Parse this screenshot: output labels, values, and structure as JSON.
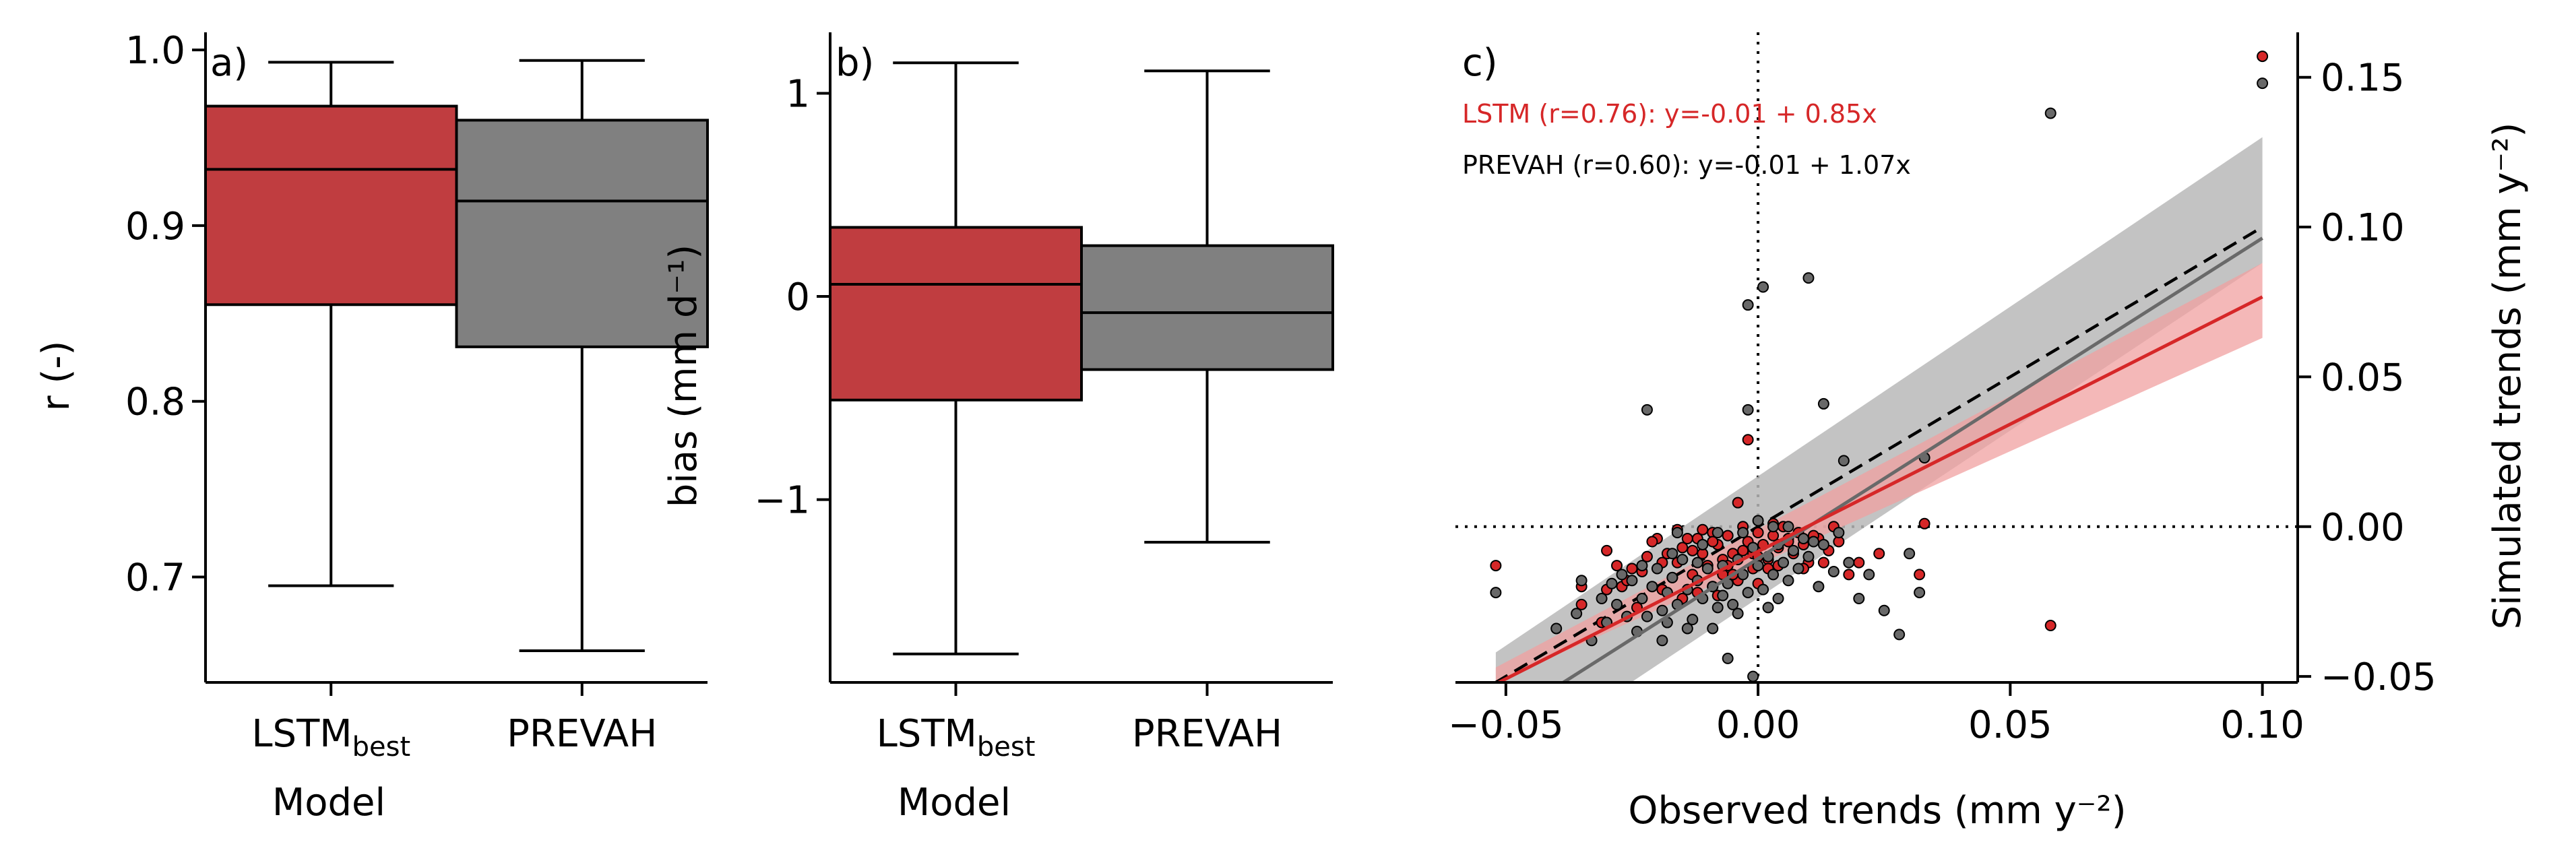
{
  "colors": {
    "lstm": "#C03D40",
    "prevah": "#808080",
    "lstm_line": "#D62728",
    "lstm_band": "#F0A0A0",
    "prevah_line": "#696969",
    "prevah_band": "#B8B8B8",
    "lstm_text": "#D62728",
    "prevah_text": "#000000"
  },
  "chart_data": [
    {
      "type": "box",
      "panel_label": "a)",
      "xlabel": "Model",
      "ylabel": "r (-)",
      "ylim": [
        0.64,
        1.01
      ],
      "yticks": [
        0.7,
        0.8,
        0.9,
        1.0
      ],
      "ytick_labels": [
        "0.7",
        "0.8",
        "0.9",
        "1.0"
      ],
      "categories": [
        {
          "main": "LSTM",
          "sub": "best"
        },
        {
          "main": "PREVAH",
          "sub": ""
        }
      ],
      "boxes": [
        {
          "whisker_low": 0.695,
          "q1": 0.855,
          "median": 0.932,
          "q3": 0.968,
          "whisker_high": 0.993
        },
        {
          "whisker_low": 0.658,
          "q1": 0.831,
          "median": 0.914,
          "q3": 0.96,
          "whisker_high": 0.994
        }
      ]
    },
    {
      "type": "box",
      "panel_label": "b)",
      "xlabel": "Model",
      "ylabel": "bias (mm d⁻¹)",
      "ylim": [
        -1.9,
        1.3
      ],
      "yticks": [
        -1,
        0,
        1
      ],
      "ytick_labels": [
        "−1",
        "0",
        "1"
      ],
      "reference_line": 0,
      "categories": [
        {
          "main": "LSTM",
          "sub": "best"
        },
        {
          "main": "PREVAH",
          "sub": ""
        }
      ],
      "boxes": [
        {
          "whisker_low": -1.76,
          "q1": -0.51,
          "median": 0.06,
          "q3": 0.34,
          "whisker_high": 1.15
        },
        {
          "whisker_low": -1.21,
          "q1": -0.36,
          "median": -0.08,
          "q3": 0.25,
          "whisker_high": 1.11
        }
      ]
    },
    {
      "type": "scatter",
      "panel_label": "c)",
      "xlabel": "Observed trends (mm y⁻²)",
      "ylabel": "Simulated trends (mm y⁻²)",
      "xlim": [
        -0.06,
        0.107
      ],
      "ylim": [
        -0.052,
        0.165
      ],
      "xticks": [
        -0.05,
        0,
        0.05,
        0.1
      ],
      "xtick_labels": [
        "−0.05",
        "0.00",
        "0.05",
        "0.10"
      ],
      "yticks": [
        -0.05,
        0,
        0.05,
        0.1,
        0.15
      ],
      "ytick_labels": [
        "−0.05",
        "0.00",
        "0.05",
        "0.10",
        "0.15"
      ],
      "annotations": [
        "LSTM (r=0.76): y=-0.01 + 0.85x",
        "PREVAH (r=0.60): y=-0.01 + 1.07x"
      ],
      "one_to_one": true,
      "series": [
        {
          "name": "LSTM",
          "fit": {
            "intercept": -0.0083,
            "slope": 0.85
          },
          "band_x": [
            -0.052,
            0.1
          ],
          "band_lower": [
            -0.052,
            0.063
          ],
          "band_upper": [
            -0.047,
            0.088
          ],
          "points": [
            [
              0.1,
              0.157
            ],
            [
              0.058,
              -0.033
            ],
            [
              -0.052,
              -0.013
            ],
            [
              0.033,
              0.001
            ],
            [
              -0.03,
              -0.008
            ],
            [
              -0.035,
              -0.026
            ],
            [
              -0.028,
              -0.013
            ],
            [
              -0.025,
              -0.014
            ],
            [
              -0.022,
              -0.01
            ],
            [
              -0.02,
              -0.004
            ],
            [
              -0.018,
              -0.009
            ],
            [
              -0.016,
              -0.012
            ],
            [
              -0.015,
              -0.007
            ],
            [
              -0.013,
              -0.016
            ],
            [
              -0.012,
              -0.004
            ],
            [
              -0.011,
              -0.009
            ],
            [
              -0.01,
              -0.013
            ],
            [
              -0.009,
              -0.002
            ],
            [
              -0.008,
              -0.006
            ],
            [
              -0.007,
              -0.016
            ],
            [
              -0.006,
              -0.003
            ],
            [
              -0.005,
              -0.009
            ],
            [
              -0.004,
              -0.018
            ],
            [
              -0.003,
              0.0
            ],
            [
              -0.002,
              -0.005
            ],
            [
              -0.001,
              -0.009
            ],
            [
              0.0,
              -0.002
            ],
            [
              0.001,
              -0.006
            ],
            [
              0.002,
              -0.011
            ],
            [
              0.003,
              -0.003
            ],
            [
              0.004,
              -0.007
            ],
            [
              0.005,
              0.0
            ],
            [
              0.006,
              -0.004
            ],
            [
              0.007,
              -0.009
            ],
            [
              0.008,
              -0.002
            ],
            [
              0.009,
              -0.006
            ],
            [
              0.01,
              -0.012
            ],
            [
              0.012,
              -0.004
            ],
            [
              0.014,
              -0.008
            ],
            [
              0.016,
              -0.005
            ],
            [
              0.02,
              -0.012
            ],
            [
              0.024,
              -0.009
            ],
            [
              -0.002,
              0.029
            ],
            [
              -0.004,
              0.008
            ],
            [
              -0.016,
              -0.001
            ],
            [
              -0.014,
              -0.004
            ],
            [
              -0.023,
              -0.015
            ],
            [
              -0.027,
              -0.02
            ],
            [
              -0.019,
              -0.021
            ],
            [
              -0.031,
              -0.032
            ],
            [
              -0.012,
              -0.022
            ],
            [
              -0.008,
              -0.023
            ],
            [
              0.0,
              -0.019
            ],
            [
              -0.007,
              -0.011
            ],
            [
              -0.001,
              -0.014
            ],
            [
              0.004,
              -0.013
            ],
            [
              0.011,
              -0.003
            ],
            [
              0.015,
              0.0
            ],
            [
              0.032,
              -0.016
            ],
            [
              -0.035,
              -0.02
            ],
            [
              -0.021,
              -0.005
            ],
            [
              -0.009,
              -0.005
            ],
            [
              -0.013,
              -0.008
            ],
            [
              -0.026,
              -0.018
            ],
            [
              -0.017,
              -0.017
            ],
            [
              -0.006,
              -0.013
            ],
            [
              -0.003,
              -0.008
            ],
            [
              0.002,
              -0.014
            ],
            [
              0.006,
              -0.005
            ],
            [
              -0.011,
              -0.001
            ],
            [
              -0.019,
              -0.012
            ],
            [
              -0.024,
              -0.027
            ],
            [
              -0.03,
              -0.021
            ],
            [
              -0.015,
              -0.024
            ],
            [
              0.009,
              -0.014
            ],
            [
              0.013,
              -0.012
            ],
            [
              0.018,
              -0.016
            ],
            [
              0.003,
              0.001
            ],
            [
              -0.005,
              -0.016
            ],
            [
              -0.009,
              -0.02
            ],
            [
              0.0,
              -0.01
            ]
          ]
        },
        {
          "name": "PREVAH",
          "fit": {
            "intercept": -0.0107,
            "slope": 1.07
          },
          "band_x": [
            -0.052,
            0.1
          ],
          "band_lower": [
            -0.082,
            0.088
          ],
          "band_upper": [
            -0.042,
            0.13
          ],
          "points": [
            [
              0.1,
              0.148
            ],
            [
              0.058,
              0.138
            ],
            [
              0.01,
              0.083
            ],
            [
              0.001,
              0.08
            ],
            [
              -0.002,
              0.074
            ],
            [
              0.013,
              0.041
            ],
            [
              -0.022,
              0.039
            ],
            [
              -0.002,
              0.039
            ],
            [
              0.017,
              0.022
            ],
            [
              0.033,
              0.023
            ],
            [
              -0.052,
              -0.022
            ],
            [
              -0.035,
              -0.018
            ],
            [
              -0.04,
              -0.034
            ],
            [
              -0.033,
              -0.038
            ],
            [
              -0.03,
              -0.032
            ],
            [
              -0.028,
              -0.026
            ],
            [
              -0.026,
              -0.03
            ],
            [
              -0.025,
              -0.018
            ],
            [
              -0.023,
              -0.024
            ],
            [
              -0.022,
              -0.03
            ],
            [
              -0.021,
              -0.02
            ],
            [
              -0.02,
              -0.014
            ],
            [
              -0.019,
              -0.028
            ],
            [
              -0.018,
              -0.022
            ],
            [
              -0.017,
              -0.017
            ],
            [
              -0.016,
              -0.026
            ],
            [
              -0.015,
              -0.011
            ],
            [
              -0.014,
              -0.021
            ],
            [
              -0.013,
              -0.031
            ],
            [
              -0.012,
              -0.018
            ],
            [
              -0.011,
              -0.024
            ],
            [
              -0.01,
              -0.014
            ],
            [
              -0.009,
              -0.02
            ],
            [
              -0.008,
              -0.027
            ],
            [
              -0.007,
              -0.013
            ],
            [
              -0.006,
              -0.019
            ],
            [
              -0.005,
              -0.026
            ],
            [
              -0.004,
              -0.011
            ],
            [
              -0.003,
              -0.016
            ],
            [
              -0.002,
              -0.022
            ],
            [
              -0.001,
              -0.007
            ],
            [
              0.0,
              -0.013
            ],
            [
              0.001,
              -0.021
            ],
            [
              0.002,
              -0.01
            ],
            [
              0.003,
              -0.016
            ],
            [
              0.004,
              -0.006
            ],
            [
              0.005,
              -0.012
            ],
            [
              0.006,
              -0.018
            ],
            [
              0.007,
              -0.008
            ],
            [
              0.008,
              -0.014
            ],
            [
              0.009,
              -0.004
            ],
            [
              0.01,
              -0.01
            ],
            [
              0.012,
              -0.02
            ],
            [
              0.013,
              -0.006
            ],
            [
              0.015,
              -0.015
            ],
            [
              0.018,
              -0.012
            ],
            [
              0.02,
              -0.024
            ],
            [
              0.022,
              -0.016
            ],
            [
              0.025,
              -0.028
            ],
            [
              0.028,
              -0.036
            ],
            [
              0.032,
              -0.022
            ],
            [
              0.003,
              0.0
            ],
            [
              0.0,
              0.002
            ],
            [
              -0.008,
              -0.002
            ],
            [
              -0.011,
              -0.006
            ],
            [
              -0.017,
              -0.009
            ],
            [
              -0.027,
              -0.016
            ],
            [
              -0.031,
              -0.024
            ],
            [
              -0.036,
              -0.029
            ],
            [
              -0.024,
              -0.035
            ],
            [
              -0.019,
              -0.038
            ],
            [
              -0.014,
              -0.034
            ],
            [
              -0.009,
              -0.034
            ],
            [
              -0.004,
              -0.029
            ],
            [
              0.002,
              -0.027
            ],
            [
              -0.001,
              -0.05
            ],
            [
              -0.006,
              -0.044
            ],
            [
              0.011,
              -0.005
            ],
            [
              0.016,
              -0.002
            ],
            [
              0.03,
              -0.009
            ],
            [
              -0.029,
              -0.019
            ],
            [
              -0.016,
              -0.002
            ],
            [
              -0.003,
              -0.002
            ],
            [
              0.006,
              0.0
            ],
            [
              -0.012,
              -0.012
            ],
            [
              -0.007,
              -0.023
            ],
            [
              0.004,
              -0.024
            ],
            [
              -0.018,
              -0.032
            ],
            [
              -0.023,
              -0.013
            ]
          ]
        }
      ]
    }
  ]
}
